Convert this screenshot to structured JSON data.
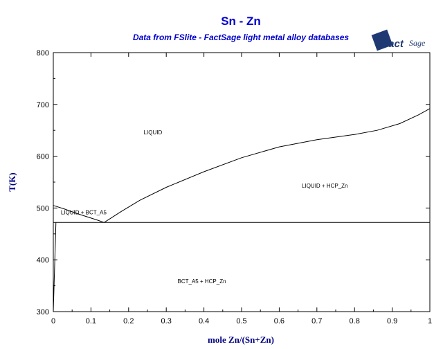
{
  "chart_data": {
    "type": "line",
    "title": "Sn - Zn",
    "subtitle": "Data from FSlite - FactSage light metal alloy databases",
    "xlabel": "mole Zn/(Sn+Zn)",
    "ylabel": "T(K)",
    "xlim": [
      0,
      1
    ],
    "ylim": [
      300,
      800
    ],
    "x_ticks": [
      "0",
      "0.1",
      "0.2",
      "0.3",
      "0.4",
      "0.5",
      "0.6",
      "0.7",
      "0.8",
      "0.9",
      "1"
    ],
    "y_ticks": [
      "300",
      "400",
      "500",
      "600",
      "700",
      "800"
    ],
    "grid": false,
    "series": [
      {
        "values": [
          [
            0.0,
            505
          ],
          [
            0.03,
            498
          ],
          [
            0.06,
            490
          ],
          [
            0.09,
            483
          ],
          [
            0.12,
            476
          ],
          [
            0.135,
            472
          ]
        ]
      },
      {
        "values": [
          [
            0.135,
            472
          ],
          [
            0.18,
            493
          ],
          [
            0.23,
            515
          ],
          [
            0.3,
            540
          ],
          [
            0.4,
            570
          ],
          [
            0.5,
            597
          ],
          [
            0.6,
            618
          ],
          [
            0.7,
            632
          ],
          [
            0.8,
            642
          ],
          [
            0.86,
            650
          ],
          [
            0.92,
            663
          ],
          [
            0.97,
            680
          ],
          [
            1.0,
            692
          ]
        ]
      },
      {
        "values": [
          [
            0.0,
            472
          ],
          [
            1.0,
            472
          ]
        ]
      },
      {
        "values": [
          [
            0.0,
            300
          ],
          [
            0.002,
            350
          ],
          [
            0.004,
            400
          ],
          [
            0.006,
            450
          ],
          [
            0.007,
            472
          ]
        ]
      },
      {
        "values": [
          [
            1.0,
            300
          ],
          [
            1.0,
            800
          ]
        ]
      }
    ],
    "regions": [
      {
        "label": "LIQUID",
        "x": 0.24,
        "y": 642
      },
      {
        "label": "LIQUID + HCP_Zn",
        "x": 0.66,
        "y": 539
      },
      {
        "label": "LIQUID + BCT_A5",
        "x": 0.02,
        "y": 488
      },
      {
        "label": "BCT_A5 + HCP_Zn",
        "x": 0.33,
        "y": 355
      }
    ]
  },
  "logo": {
    "text": "Fact",
    "suffix": "Sage"
  }
}
